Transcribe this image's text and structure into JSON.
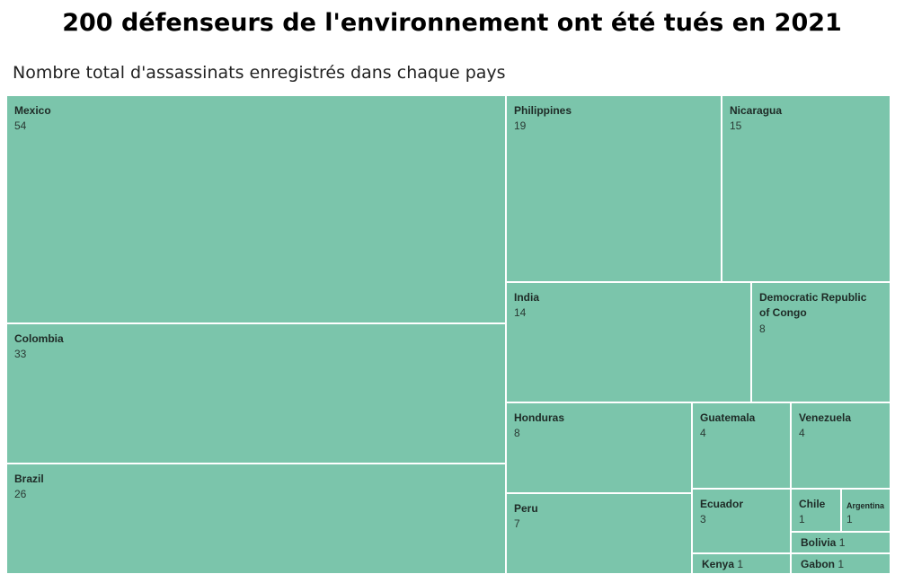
{
  "title": "200 défenseurs de l'environnement ont été tués en 2021",
  "subtitle": "Nombre total d'assassinats enregistrés dans chaque pays",
  "colors": {
    "tile": "#7bc5ab",
    "border": "#ffffff",
    "text": "#1e2a26"
  },
  "chart_data": {
    "type": "treemap",
    "total": 200,
    "categories": [
      "Mexico",
      "Colombia",
      "Brazil",
      "Philippines",
      "Nicaragua",
      "India",
      "Democratic Republic of Congo",
      "Honduras",
      "Peru",
      "Guatemala",
      "Venezuela",
      "Ecuador",
      "Chile",
      "Argentina",
      "Bolivia",
      "Kenya",
      "Gabon"
    ],
    "values": [
      54,
      33,
      26,
      19,
      15,
      14,
      8,
      8,
      7,
      4,
      4,
      3,
      1,
      1,
      1,
      1,
      1
    ],
    "title": "200 défenseurs de l'environnement ont été tués en 2021",
    "subtitle": "Nombre total d'assassinats enregistrés dans chaque pays"
  }
}
